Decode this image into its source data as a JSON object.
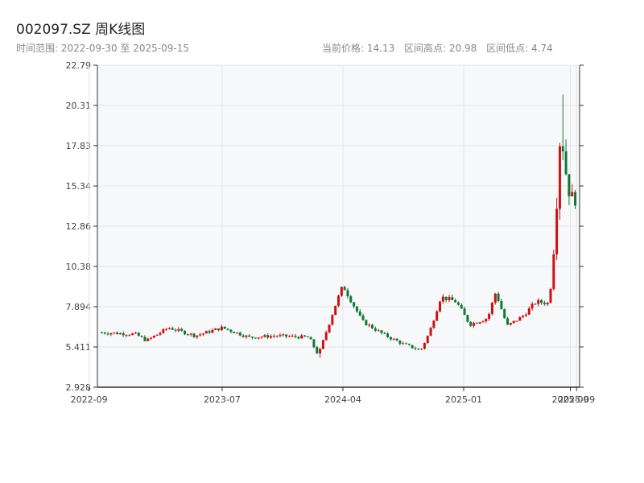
{
  "header": {
    "title": "002097.SZ 周K线图",
    "range_label": "时间范围: 2022-09-30 至 2025-09-15",
    "stats": [
      "当前价格: 14.13",
      "区间高点: 20.98",
      "区间低点: 4.74"
    ]
  },
  "colors": {
    "up": "#cc1111",
    "down": "#117733",
    "plot_bg": "#f7f8fa",
    "grid": "#e3e5ea",
    "axis": "#333333"
  },
  "chart_data": {
    "type": "candlestick",
    "title": "002097.SZ 周K线图",
    "date_range": [
      "2022-09-30",
      "2025-09-15"
    ],
    "ylim": [
      2.928,
      22.79
    ],
    "y_ticks": [
      "2.928",
      "5.411",
      "7.894",
      "10.38",
      "12.86",
      "15.34",
      "17.83",
      "20.31",
      "22.79"
    ],
    "x_ticks": [
      {
        "label": "2022-09",
        "date": "2022-09-01"
      },
      {
        "label": "2023-07",
        "date": "2023-07-01"
      },
      {
        "label": "2024-04",
        "date": "2024-04-01"
      },
      {
        "label": "2025-01",
        "date": "2025-01-01"
      },
      {
        "label": "2025-09",
        "date": "2025-09-01"
      },
      {
        "label": "2025-09",
        "date": "2025-09-15"
      }
    ],
    "grid": true,
    "current_price": 14.13,
    "period_high": 20.98,
    "period_low": 4.74,
    "key_closes": [
      {
        "date": "2022-09-30",
        "close": 6.3
      },
      {
        "date": "2022-12-15",
        "close": 6.2
      },
      {
        "date": "2023-01-10",
        "close": 5.8
      },
      {
        "date": "2023-03-01",
        "close": 6.6
      },
      {
        "date": "2023-05-01",
        "close": 6.1
      },
      {
        "date": "2023-07-01",
        "close": 6.6
      },
      {
        "date": "2023-09-01",
        "close": 6.0
      },
      {
        "date": "2023-11-01",
        "close": 6.1
      },
      {
        "date": "2024-01-15",
        "close": 6.0
      },
      {
        "date": "2024-02-05",
        "close": 4.9
      },
      {
        "date": "2024-03-15",
        "close": 8.0
      },
      {
        "date": "2024-04-01",
        "close": 9.2
      },
      {
        "date": "2024-05-15",
        "close": 7.0
      },
      {
        "date": "2024-07-01",
        "close": 6.2
      },
      {
        "date": "2024-08-15",
        "close": 5.6
      },
      {
        "date": "2024-09-25",
        "close": 5.2
      },
      {
        "date": "2024-10-15",
        "close": 6.3
      },
      {
        "date": "2024-11-10",
        "close": 8.5
      },
      {
        "date": "2024-12-15",
        "close": 8.2
      },
      {
        "date": "2025-01-15",
        "close": 6.8
      },
      {
        "date": "2025-02-25",
        "close": 7.2
      },
      {
        "date": "2025-03-15",
        "close": 8.8
      },
      {
        "date": "2025-04-10",
        "close": 6.7
      },
      {
        "date": "2025-05-15",
        "close": 7.3
      },
      {
        "date": "2025-06-15",
        "close": 8.2
      },
      {
        "date": "2025-07-15",
        "close": 8.1
      },
      {
        "date": "2025-07-25",
        "close": 11.5
      },
      {
        "date": "2025-08-01",
        "close": 14.5
      },
      {
        "date": "2025-08-10",
        "close": 19.2
      },
      {
        "date": "2025-08-20",
        "close": 16.5
      },
      {
        "date": "2025-09-01",
        "close": 14.7
      },
      {
        "date": "2025-09-15",
        "close": 14.13
      }
    ]
  }
}
